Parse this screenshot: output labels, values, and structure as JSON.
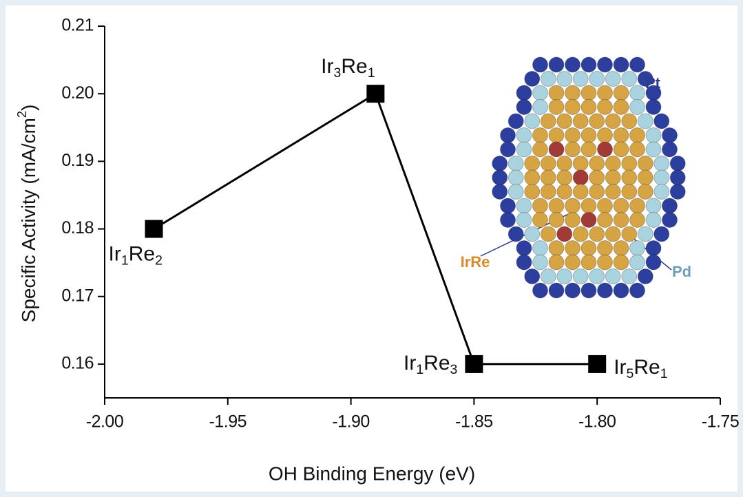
{
  "chart_data": {
    "type": "line",
    "xlabel": "OH Binding Energy (eV)",
    "ylabel": "Specific Activity (mA/cm2)",
    "x": [
      -1.98,
      -1.89,
      -1.85,
      -1.8
    ],
    "values": [
      0.18,
      0.2,
      0.16,
      0.16
    ],
    "point_labels": [
      "Ir1Re2",
      "Ir3Re1",
      "Ir1Re3",
      "Ir5Re1"
    ],
    "color": "#000000",
    "xlim": [
      -2.0,
      -1.75
    ],
    "xticks": [
      {
        "value": -2.0,
        "label": "-2.00"
      },
      -1.95,
      {
        "value": -1.9,
        "label": "-1.90"
      },
      -1.85,
      {
        "value": -1.8,
        "label": "-1.80"
      },
      -1.75
    ],
    "ylim": [
      0.155,
      0.21
    ],
    "yticks": [
      0.16,
      0.17,
      0.18,
      0.19,
      {
        "value": 0.2,
        "label": "0.20"
      },
      0.21
    ],
    "inset": {
      "labels": [
        "Pt",
        "Pd",
        "IrRe"
      ]
    }
  }
}
